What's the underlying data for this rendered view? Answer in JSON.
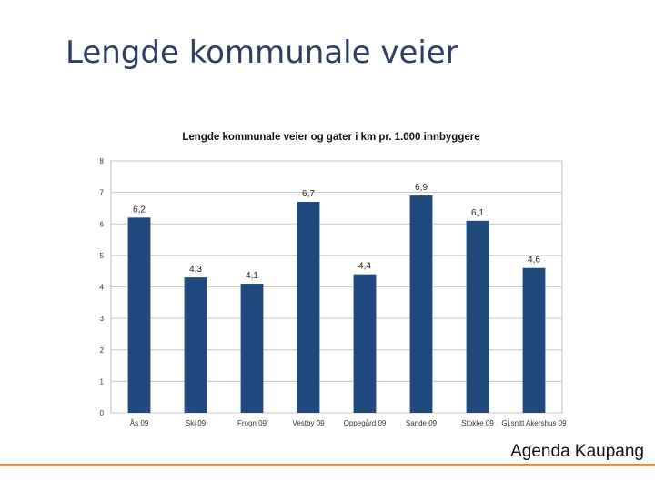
{
  "slide": {
    "title": "Lengde kommunale veier",
    "footer": "Agenda Kaupang",
    "accent_color": "#d49a52"
  },
  "chart_data": {
    "type": "bar",
    "title": "Lengde kommunale veier og gater i km pr. 1.000 innbyggere",
    "categories": [
      "Ås 09",
      "Ski 09",
      "Frogn 09",
      "Vestby 09",
      "Oppegård 09",
      "Sande 09",
      "Stokke 09",
      "Gj.snitt Akershus 09"
    ],
    "values": [
      6.2,
      4.3,
      4.1,
      6.7,
      4.4,
      6.9,
      6.1,
      4.6
    ],
    "data_labels": [
      "6,2",
      "4,3",
      "4,1",
      "6,7",
      "4,4",
      "6,9",
      "6,1",
      "4,6"
    ],
    "ylim": [
      0,
      8
    ],
    "yticks": [
      "0",
      "1",
      "2",
      "3",
      "4",
      "5",
      "6",
      "7",
      "8"
    ],
    "xlabel": "",
    "ylabel": "",
    "grid": true,
    "legend": "none",
    "bar_color": "#1f497d"
  }
}
